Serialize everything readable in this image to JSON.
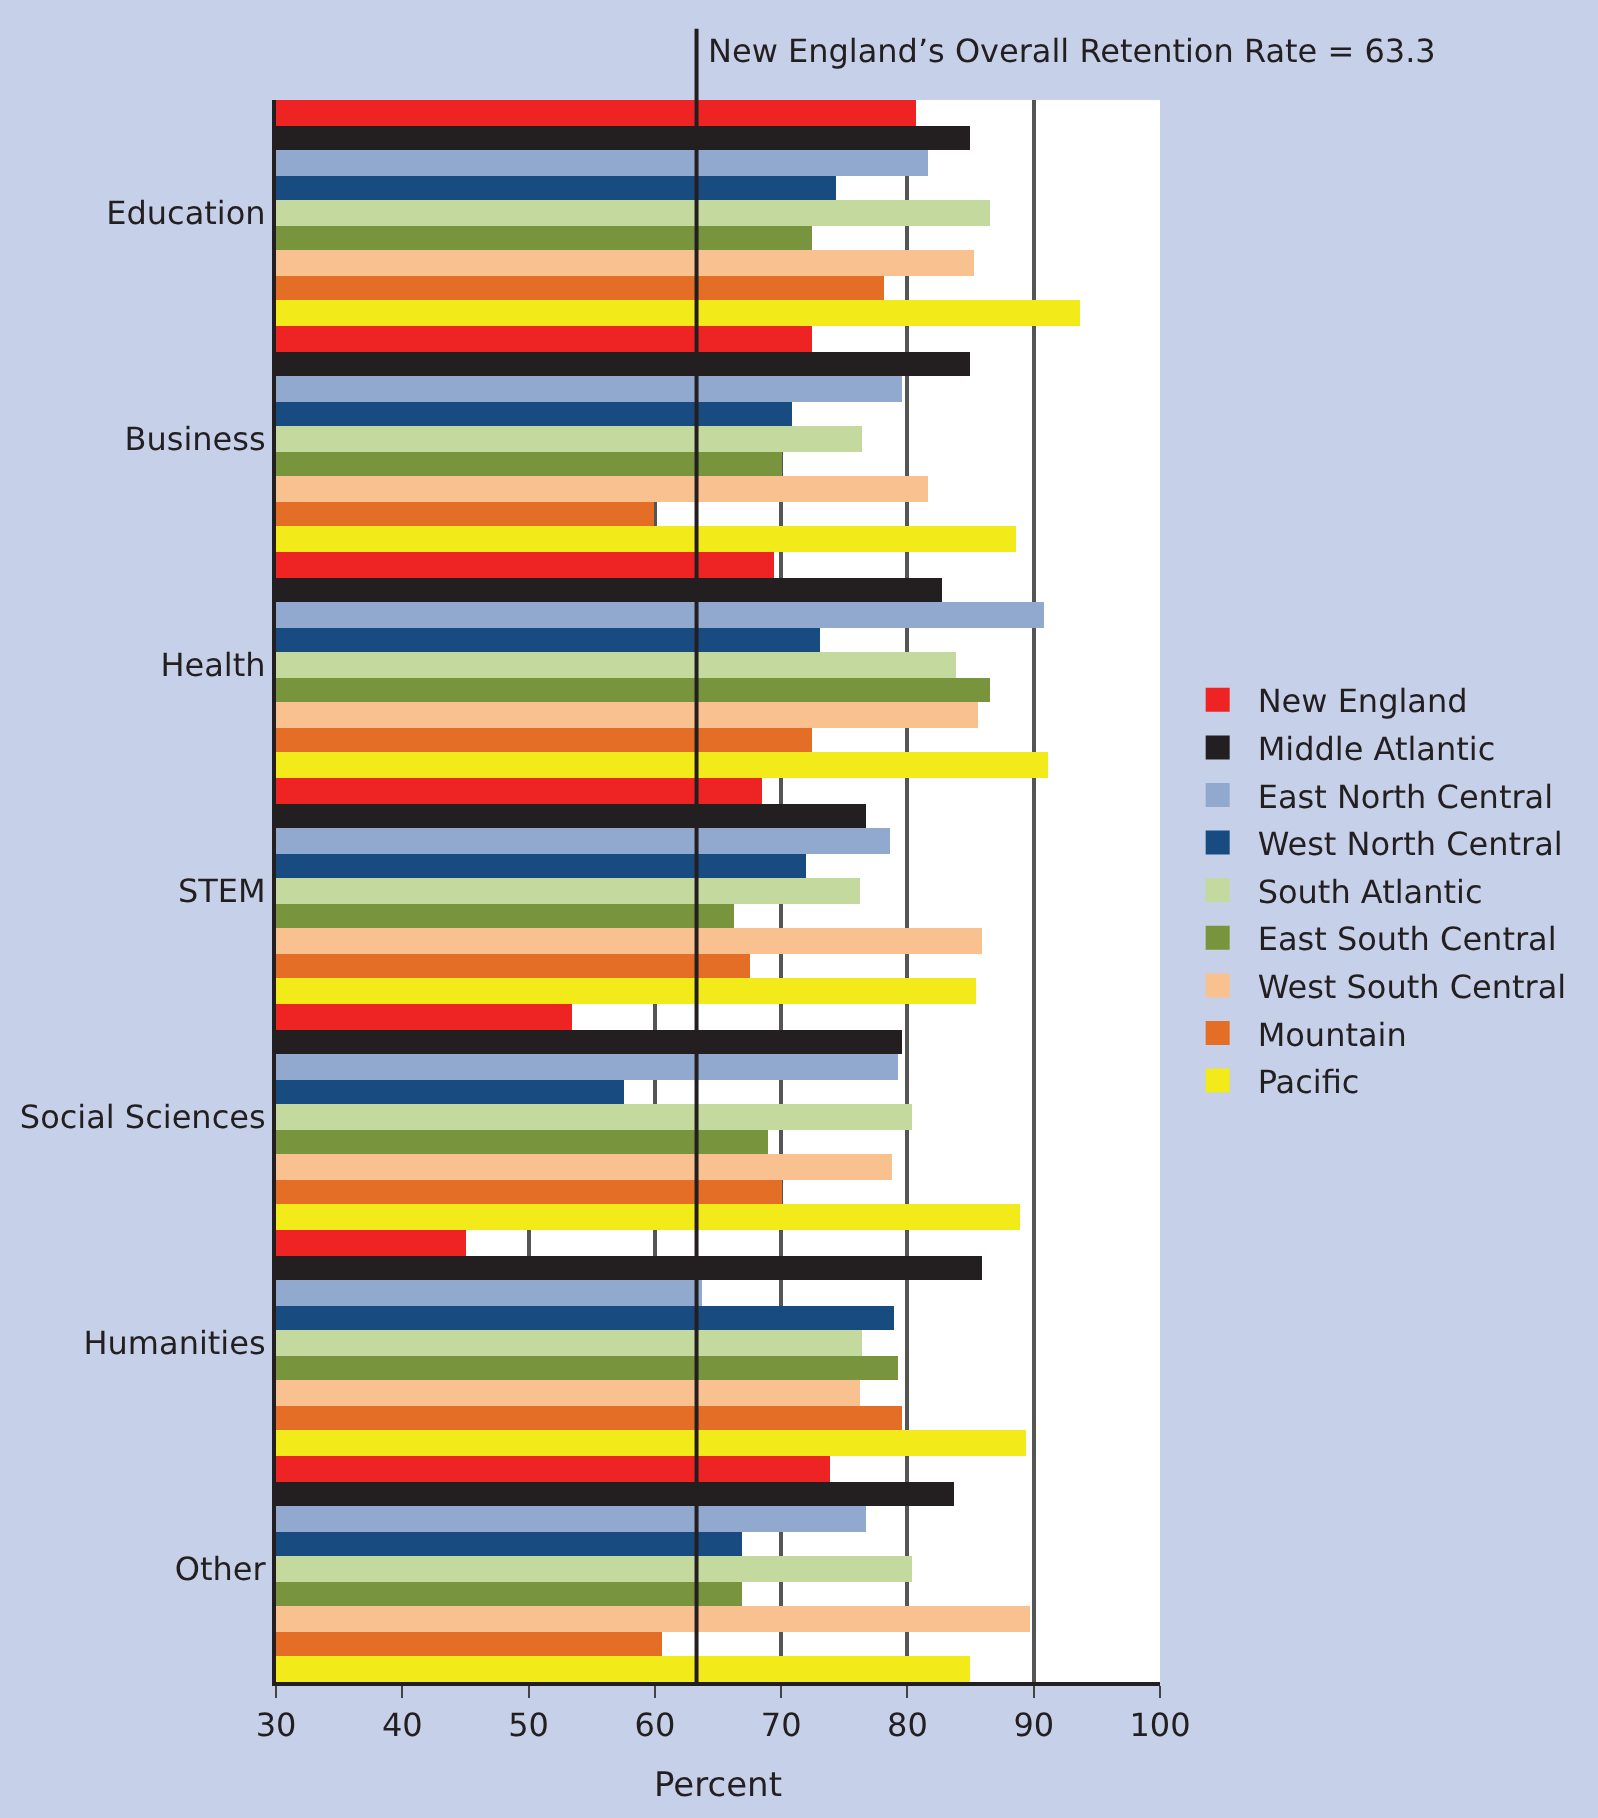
{
  "chart_data": {
    "type": "bar",
    "orientation": "horizontal",
    "xlabel": "Percent",
    "categories": [
      "Education",
      "Business",
      "Health",
      "STEM",
      "Social Sciences",
      "Humanities",
      "Other"
    ],
    "series": [
      {
        "name": "New England",
        "color": "#ee2424",
        "values": [
          80.7,
          72.5,
          69.5,
          68.5,
          53.4,
          45.0,
          73.8
        ]
      },
      {
        "name": "Middle Atlantic",
        "color": "#231f20",
        "values": [
          84.9,
          84.9,
          82.8,
          76.7,
          79.6,
          85.9,
          83.7
        ]
      },
      {
        "name": "East North Central",
        "color": "#91a9cf",
        "values": [
          81.7,
          79.6,
          90.8,
          78.6,
          79.2,
          63.8,
          76.7
        ]
      },
      {
        "name": "West North Central",
        "color": "#184c80",
        "values": [
          74.4,
          70.8,
          73.0,
          71.9,
          57.6,
          78.9,
          66.9
        ]
      },
      {
        "name": "South Atlantic",
        "color": "#c4d99e",
        "values": [
          86.6,
          76.4,
          83.8,
          76.2,
          80.4,
          76.4,
          80.4
        ]
      },
      {
        "name": "East South Central",
        "color": "#78953d",
        "values": [
          72.5,
          70.0,
          86.6,
          66.3,
          69.0,
          79.2,
          66.9
        ]
      },
      {
        "name": "West South Central",
        "color": "#f9c190",
        "values": [
          85.2,
          81.7,
          85.6,
          85.9,
          78.8,
          76.3,
          89.7
        ]
      },
      {
        "name": "Mountain",
        "color": "#e56e27",
        "values": [
          78.2,
          59.9,
          72.5,
          67.6,
          70.1,
          79.5,
          60.6
        ]
      },
      {
        "name": "Pacific",
        "color": "#f2ea19",
        "values": [
          93.6,
          88.6,
          91.1,
          85.4,
          88.9,
          89.4,
          85.0
        ]
      }
    ],
    "xlim": [
      30,
      100
    ],
    "xticks": [
      30,
      40,
      50,
      60,
      70,
      80,
      90,
      100
    ],
    "grid": "x",
    "legend": "right",
    "ref_lines": [
      {
        "axis": "x",
        "value": 63.3,
        "label": "New England’s Overall Retention Rate = 63.3",
        "color": "#231f20"
      }
    ]
  }
}
